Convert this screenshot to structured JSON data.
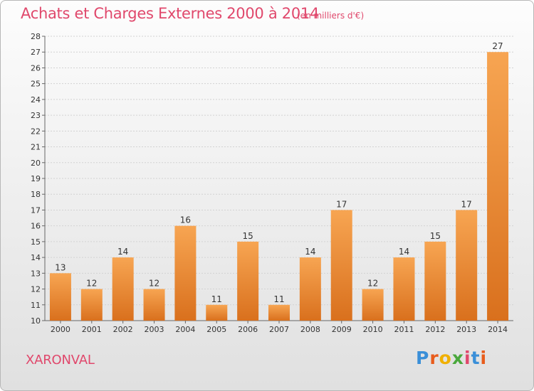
{
  "chart_data": {
    "type": "bar",
    "title": "Achats et Charges Externes 2000 à 2014",
    "subtitle": "(en milliers d'€)",
    "categories": [
      "2000",
      "2001",
      "2002",
      "2003",
      "2004",
      "2005",
      "2006",
      "2007",
      "2008",
      "2009",
      "2010",
      "2011",
      "2012",
      "2013",
      "2014"
    ],
    "values": [
      13,
      12,
      14,
      12,
      16,
      11,
      15,
      11,
      14,
      17,
      12,
      14,
      15,
      17,
      27
    ],
    "ylim": [
      10,
      28
    ],
    "yticks": [
      10,
      11,
      12,
      13,
      14,
      15,
      16,
      17,
      18,
      19,
      20,
      21,
      22,
      23,
      24,
      25,
      26,
      27,
      28
    ],
    "grid": true,
    "legend": "none",
    "bar_color": "#f08a30"
  },
  "footer": {
    "town": "XARONVAL",
    "logo": {
      "letters": [
        "P",
        "r",
        "o",
        "x",
        "i",
        "t",
        "i"
      ],
      "colors": [
        "#3a8fd8",
        "#e85c1c",
        "#f0b000",
        "#4aa83c",
        "#e0486c",
        "#3a8fd8",
        "#e85c1c"
      ]
    }
  }
}
